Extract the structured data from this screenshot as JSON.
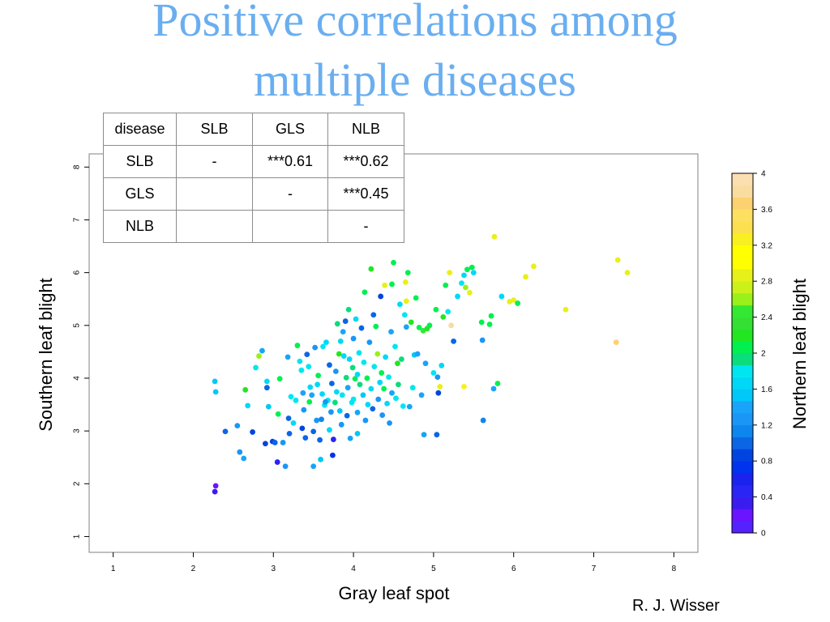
{
  "slide": {
    "title_line1": "Positive correlations among",
    "title_line2": "multiple diseases",
    "author": "R. J. Wisser"
  },
  "table": {
    "header": [
      "disease",
      "SLB",
      "GLS",
      "NLB"
    ],
    "rows": [
      [
        "SLB",
        "-",
        "***0.61",
        "***0.62"
      ],
      [
        "GLS",
        "",
        "-",
        "***0.45"
      ],
      [
        "NLB",
        "",
        "",
        "-"
      ]
    ]
  },
  "chart_data": {
    "type": "scatter",
    "xlabel": "Gray leaf spot",
    "ylabel": "Southern leaf blight",
    "colorbar_label": "Northern leaf blight",
    "xlim": [
      0.7,
      8.3
    ],
    "ylim": [
      0.7,
      8.25
    ],
    "xticks": [
      "1",
      "2",
      "3",
      "4",
      "5",
      "6",
      "7",
      "8"
    ],
    "yticks": [
      "1",
      "2",
      "3",
      "4",
      "5",
      "6",
      "7",
      "8"
    ],
    "colorbar_ticks": [
      "0",
      "0.4",
      "0.8",
      "1.2",
      "1.6",
      "2",
      "2.4",
      "2.8",
      "3.2",
      "3.6",
      "4"
    ],
    "colorbar_colors": [
      "#5522ff",
      "#6a14ff",
      "#3a1cf0",
      "#2a24f5",
      "#1a22ee",
      "#0033ee",
      "#0044e0",
      "#0b66e6",
      "#0d86ee",
      "#1a96f6",
      "#19a4f9",
      "#00c8f8",
      "#00d8f8",
      "#00e6f0",
      "#0bdc7c",
      "#00f050",
      "#22e622",
      "#33e033",
      "#33e833",
      "#99f01a",
      "#ccf01a",
      "#e8f01a",
      "#ffff00",
      "#ffff00",
      "#f8f020",
      "#fde04f",
      "#fde060",
      "#fdd070",
      "#f8dca0",
      "#fcdfb0"
    ],
    "points": [
      [
        2.27,
        1.85,
        0.3
      ],
      [
        2.28,
        1.96,
        0.2
      ],
      [
        2.27,
        3.94,
        1.5
      ],
      [
        2.28,
        3.74,
        1.5
      ],
      [
        2.4,
        2.99,
        1.0
      ],
      [
        2.55,
        3.1,
        1.2
      ],
      [
        2.58,
        2.6,
        1.2
      ],
      [
        2.63,
        2.48,
        1.4
      ],
      [
        2.65,
        3.78,
        2.2
      ],
      [
        2.68,
        3.48,
        1.6
      ],
      [
        2.74,
        2.98,
        0.9
      ],
      [
        2.78,
        4.2,
        1.8
      ],
      [
        2.82,
        4.42,
        2.6
      ],
      [
        2.86,
        4.52,
        1.4
      ],
      [
        2.9,
        2.76,
        0.8
      ],
      [
        2.92,
        3.82,
        1.0
      ],
      [
        2.94,
        3.46,
        1.5
      ],
      [
        2.92,
        3.94,
        1.7
      ],
      [
        2.99,
        2.8,
        0.9
      ],
      [
        3.02,
        2.78,
        1.0
      ],
      [
        3.05,
        2.41,
        0.4
      ],
      [
        3.06,
        3.32,
        2.0
      ],
      [
        3.08,
        3.99,
        2.0
      ],
      [
        3.12,
        2.78,
        1.2
      ],
      [
        3.15,
        2.33,
        1.2
      ],
      [
        3.18,
        4.4,
        1.4
      ],
      [
        3.19,
        3.24,
        1.0
      ],
      [
        3.22,
        3.65,
        1.8
      ],
      [
        3.25,
        3.15,
        1.6
      ],
      [
        3.28,
        3.58,
        1.8
      ],
      [
        3.3,
        4.62,
        2.0
      ],
      [
        3.33,
        4.32,
        1.8
      ],
      [
        3.35,
        4.15,
        1.8
      ],
      [
        3.36,
        3.05,
        0.9
      ],
      [
        3.37,
        3.72,
        1.4
      ],
      [
        3.38,
        3.4,
        1.2
      ],
      [
        3.4,
        2.87,
        1.0
      ],
      [
        3.42,
        4.45,
        1.0
      ],
      [
        3.44,
        4.22,
        1.8
      ],
      [
        3.45,
        3.55,
        2.0
      ],
      [
        3.46,
        3.83,
        1.6
      ],
      [
        3.48,
        3.68,
        1.4
      ],
      [
        3.5,
        2.99,
        1.0
      ],
      [
        3.5,
        2.33,
        1.4
      ],
      [
        3.52,
        4.58,
        1.3
      ],
      [
        3.54,
        3.2,
        1.2
      ],
      [
        3.55,
        3.88,
        1.6
      ],
      [
        3.56,
        4.05,
        2.0
      ],
      [
        3.58,
        2.83,
        1.0
      ],
      [
        3.59,
        2.46,
        1.5
      ],
      [
        3.6,
        3.22,
        1.1
      ],
      [
        3.61,
        3.7,
        1.6
      ],
      [
        3.62,
        4.6,
        1.8
      ],
      [
        3.64,
        3.49,
        1.8
      ],
      [
        3.66,
        4.68,
        1.6
      ],
      [
        3.68,
        3.58,
        1.8
      ],
      [
        3.7,
        3.02,
        1.6
      ],
      [
        3.7,
        4.25,
        1.0
      ],
      [
        3.72,
        3.36,
        1.2
      ],
      [
        3.73,
        3.9,
        1.0
      ],
      [
        3.74,
        2.54,
        0.7
      ],
      [
        3.75,
        2.84,
        0.5
      ],
      [
        3.77,
        3.54,
        1.9
      ],
      [
        3.78,
        4.13,
        1.3
      ],
      [
        3.79,
        3.74,
        1.6
      ],
      [
        3.8,
        5.03,
        1.9
      ],
      [
        3.82,
        4.46,
        2.2
      ],
      [
        3.83,
        3.38,
        1.5
      ],
      [
        3.84,
        4.7,
        1.6
      ],
      [
        3.85,
        3.12,
        1.2
      ],
      [
        3.86,
        3.68,
        1.8
      ],
      [
        3.87,
        4.88,
        1.4
      ],
      [
        3.88,
        4.42,
        1.7
      ],
      [
        3.9,
        5.08,
        1.0
      ],
      [
        3.91,
        4.01,
        1.9
      ],
      [
        3.92,
        3.29,
        1.0
      ],
      [
        3.93,
        3.82,
        1.4
      ],
      [
        3.94,
        5.3,
        1.9
      ],
      [
        3.95,
        4.36,
        1.6
      ],
      [
        3.96,
        2.86,
        1.4
      ],
      [
        3.98,
        3.54,
        1.8
      ],
      [
        3.99,
        4.2,
        1.9
      ],
      [
        4.0,
        3.6,
        1.8
      ],
      [
        4.0,
        4.75,
        1.3
      ],
      [
        4.02,
        3.99,
        2.0
      ],
      [
        4.03,
        5.12,
        1.6
      ],
      [
        4.05,
        4.07,
        1.6
      ],
      [
        4.05,
        3.35,
        1.4
      ],
      [
        4.07,
        4.48,
        1.8
      ],
      [
        4.08,
        3.88,
        1.9
      ],
      [
        4.1,
        4.95,
        1.0
      ],
      [
        4.12,
        3.68,
        1.5
      ],
      [
        4.13,
        4.3,
        1.8
      ],
      [
        4.14,
        5.63,
        2.0
      ],
      [
        4.15,
        3.2,
        1.3
      ],
      [
        4.17,
        4.0,
        2.0
      ],
      [
        4.18,
        3.5,
        1.6
      ],
      [
        4.2,
        4.68,
        1.3
      ],
      [
        4.22,
        3.8,
        1.6
      ],
      [
        4.22,
        6.07,
        2.2
      ],
      [
        4.24,
        3.42,
        1.0
      ],
      [
        4.25,
        5.2,
        1.0
      ],
      [
        4.26,
        4.22,
        1.8
      ],
      [
        4.28,
        4.98,
        2.0
      ],
      [
        4.3,
        4.46,
        2.6
      ],
      [
        4.31,
        3.6,
        1.2
      ],
      [
        4.33,
        3.92,
        1.6
      ],
      [
        4.34,
        5.55,
        0.9
      ],
      [
        4.35,
        4.1,
        2.0
      ],
      [
        4.36,
        3.3,
        1.2
      ],
      [
        4.38,
        3.8,
        2.0
      ],
      [
        4.39,
        5.76,
        2.8
      ],
      [
        4.4,
        4.4,
        1.6
      ],
      [
        4.42,
        3.52,
        1.6
      ],
      [
        4.44,
        4.02,
        1.8
      ],
      [
        4.45,
        3.15,
        1.2
      ],
      [
        4.47,
        4.88,
        1.4
      ],
      [
        4.48,
        5.78,
        2.0
      ],
      [
        4.5,
        6.19,
        2.0
      ],
      [
        4.52,
        4.6,
        1.8
      ],
      [
        4.53,
        3.62,
        1.8
      ],
      [
        4.55,
        4.28,
        2.2
      ],
      [
        4.56,
        3.88,
        1.9
      ],
      [
        4.58,
        5.4,
        1.6
      ],
      [
        4.6,
        4.36,
        1.9
      ],
      [
        4.62,
        3.47,
        1.8
      ],
      [
        4.64,
        5.2,
        1.8
      ],
      [
        4.65,
        5.82,
        2.8
      ],
      [
        4.66,
        4.97,
        1.4
      ],
      [
        4.68,
        6.0,
        2.0
      ],
      [
        4.7,
        3.46,
        1.4
      ],
      [
        4.72,
        5.06,
        2.2
      ],
      [
        4.74,
        3.82,
        1.8
      ],
      [
        4.76,
        4.44,
        1.5
      ],
      [
        4.78,
        5.52,
        2.0
      ],
      [
        4.8,
        4.46,
        1.4
      ],
      [
        4.82,
        4.96,
        2.0
      ],
      [
        4.85,
        3.68,
        1.4
      ],
      [
        4.87,
        4.9,
        2.4
      ],
      [
        4.88,
        2.93,
        1.4
      ],
      [
        4.9,
        4.28,
        1.4
      ],
      [
        4.92,
        4.94,
        2.2
      ],
      [
        4.95,
        5.0,
        2.0
      ],
      [
        5.0,
        4.1,
        1.8
      ],
      [
        5.03,
        5.3,
        2.0
      ],
      [
        5.04,
        2.93,
        1.0
      ],
      [
        5.05,
        4.02,
        1.2
      ],
      [
        5.06,
        3.72,
        0.8
      ],
      [
        5.08,
        3.84,
        2.8
      ],
      [
        5.1,
        4.24,
        1.6
      ],
      [
        5.12,
        5.16,
        2.2
      ],
      [
        5.15,
        5.76,
        2.0
      ],
      [
        5.18,
        5.26,
        1.8
      ],
      [
        5.2,
        6.0,
        2.8
      ],
      [
        5.22,
        5.0,
        3.8
      ],
      [
        5.25,
        4.7,
        1.0
      ],
      [
        5.3,
        5.55,
        1.6
      ],
      [
        5.35,
        5.8,
        1.8
      ],
      [
        5.38,
        5.95,
        1.6
      ],
      [
        5.4,
        5.72,
        2.6
      ],
      [
        5.42,
        6.06,
        2.0
      ],
      [
        5.45,
        5.62,
        2.8
      ],
      [
        5.48,
        6.1,
        2.0
      ],
      [
        5.5,
        6.0,
        1.6
      ],
      [
        5.6,
        5.06,
        2.0
      ],
      [
        5.61,
        4.72,
        1.2
      ],
      [
        5.62,
        3.2,
        1.1
      ],
      [
        5.7,
        5.02,
        2.0
      ],
      [
        5.72,
        5.18,
        2.0
      ],
      [
        5.75,
        3.8,
        1.4
      ],
      [
        5.76,
        6.68,
        2.8
      ],
      [
        5.8,
        3.9,
        2.0
      ],
      [
        5.85,
        5.55,
        1.6
      ],
      [
        5.95,
        5.45,
        2.8
      ],
      [
        6.0,
        5.48,
        2.8
      ],
      [
        6.05,
        5.42,
        2.0
      ],
      [
        6.15,
        5.92,
        2.8
      ],
      [
        6.25,
        6.12,
        2.8
      ],
      [
        6.65,
        5.3,
        2.8
      ],
      [
        7.28,
        4.68,
        3.6
      ],
      [
        7.3,
        6.24,
        2.8
      ],
      [
        7.42,
        6.0,
        2.8
      ],
      [
        5.38,
        3.84,
        3.2
      ],
      [
        3.65,
        3.55,
        1.2
      ],
      [
        4.48,
        3.72,
        1.4
      ],
      [
        3.2,
        2.95,
        1.0
      ],
      [
        4.05,
        2.95,
        1.5
      ],
      [
        4.66,
        5.46,
        2.8
      ]
    ]
  }
}
